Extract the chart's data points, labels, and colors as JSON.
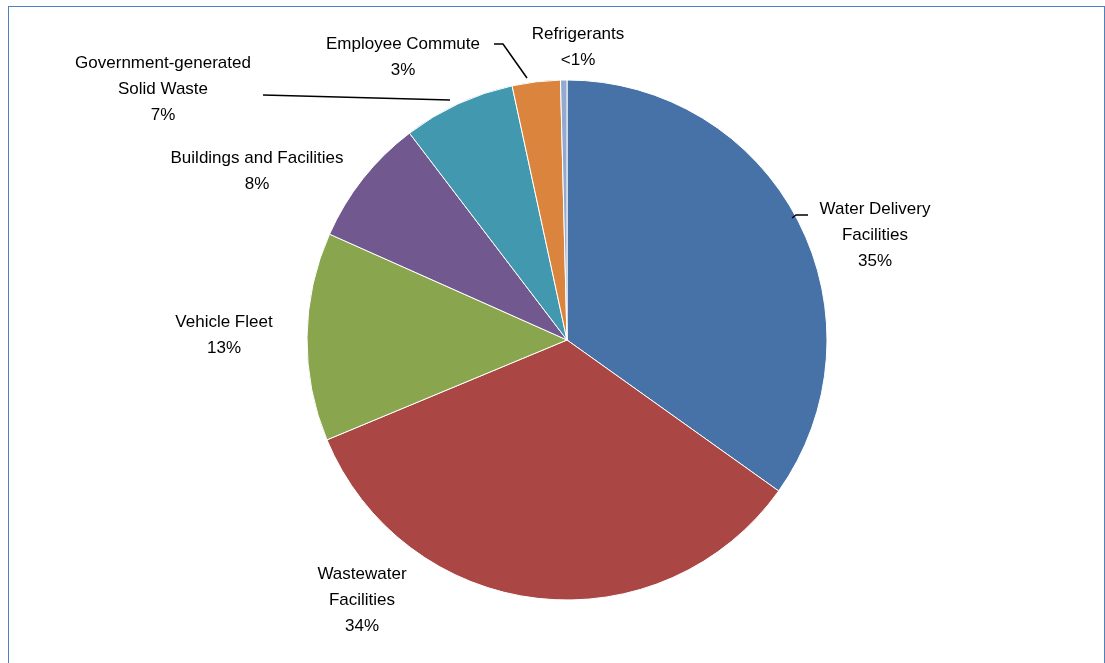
{
  "chart_data": {
    "type": "pie",
    "categories": [
      "Water Delivery\nFacilities",
      "Wastewater\nFacilities",
      "Vehicle Fleet",
      "Buildings and Facilities",
      "Government-generated\nSolid Waste",
      "Employee Commute",
      "Refrigerants"
    ],
    "values": [
      35,
      34,
      13,
      8,
      7,
      3,
      0.4
    ],
    "value_labels": [
      "35%",
      "34%",
      "13%",
      "8%",
      "7%",
      "3%",
      "<1%"
    ],
    "colors": [
      "#4672a8",
      "#aa4644",
      "#89a54e",
      "#71588f",
      "#4198af",
      "#db843d",
      "#93a9cf"
    ]
  }
}
